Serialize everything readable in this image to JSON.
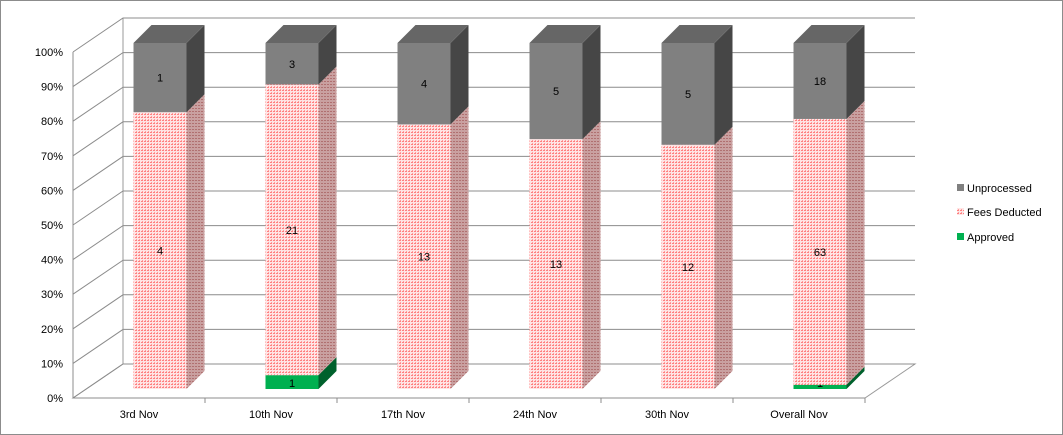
{
  "chart_data": {
    "type": "bar",
    "stacked": "percent",
    "three_d": true,
    "categories": [
      "3rd Nov",
      "10th Nov",
      "17th Nov",
      "24th Nov",
      "30th Nov",
      "Overall Nov"
    ],
    "series": [
      {
        "name": "Approved",
        "values": [
          0,
          1,
          0,
          0,
          0,
          1
        ],
        "color": "#00b050"
      },
      {
        "name": "Fees Deducted",
        "values": [
          4,
          21,
          13,
          13,
          12,
          63
        ],
        "color": "#ff9a9a"
      },
      {
        "name": "Unprocessed",
        "values": [
          1,
          3,
          4,
          5,
          5,
          18
        ],
        "color": "#808080"
      }
    ],
    "ylim": [
      0,
      100
    ],
    "yticks": [
      "0%",
      "10%",
      "20%",
      "30%",
      "40%",
      "50%",
      "60%",
      "70%",
      "80%",
      "90%",
      "100%"
    ],
    "grid": true,
    "legend_position": "right",
    "legend_order": [
      "Unprocessed",
      "Fees Deducted",
      "Approved"
    ]
  }
}
